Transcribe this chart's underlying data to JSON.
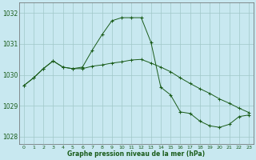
{
  "line1_x": [
    0,
    1,
    2,
    3,
    4,
    5,
    6,
    7,
    8,
    9,
    10,
    11,
    12,
    13,
    14,
    15,
    16,
    17,
    18,
    19,
    20,
    21,
    22,
    23
  ],
  "line1_y": [
    1029.65,
    1029.9,
    1030.2,
    1030.45,
    1030.25,
    1030.2,
    1030.25,
    1030.8,
    1031.3,
    1031.75,
    1031.85,
    1031.85,
    1031.85,
    1031.05,
    1029.6,
    1029.35,
    1028.8,
    1028.75,
    1028.5,
    1028.35,
    1028.3,
    1028.4,
    1028.65,
    1028.7
  ],
  "line2_x": [
    0,
    1,
    2,
    3,
    4,
    5,
    6,
    7,
    8,
    9,
    10,
    11,
    12,
    13,
    14,
    15,
    16,
    17,
    18,
    19,
    20,
    21,
    22,
    23
  ],
  "line2_y": [
    1029.65,
    1029.9,
    1030.2,
    1030.45,
    1030.25,
    1030.2,
    1030.2,
    1030.28,
    1030.32,
    1030.38,
    1030.42,
    1030.48,
    1030.5,
    1030.38,
    1030.25,
    1030.1,
    1029.9,
    1029.72,
    1029.55,
    1029.4,
    1029.22,
    1029.08,
    1028.92,
    1028.78
  ],
  "bg_color": "#c8e8f0",
  "line_color": "#1a5c1a",
  "grid_color": "#a0c8c8",
  "text_color": "#1a5c1a",
  "ylim": [
    1027.75,
    1032.35
  ],
  "yticks": [
    1028,
    1029,
    1030,
    1031,
    1032
  ],
  "xticks": [
    0,
    1,
    2,
    3,
    4,
    5,
    6,
    7,
    8,
    9,
    10,
    11,
    12,
    13,
    14,
    15,
    16,
    17,
    18,
    19,
    20,
    21,
    22,
    23
  ],
  "xlabel": "Graphe pression niveau de la mer (hPa)"
}
